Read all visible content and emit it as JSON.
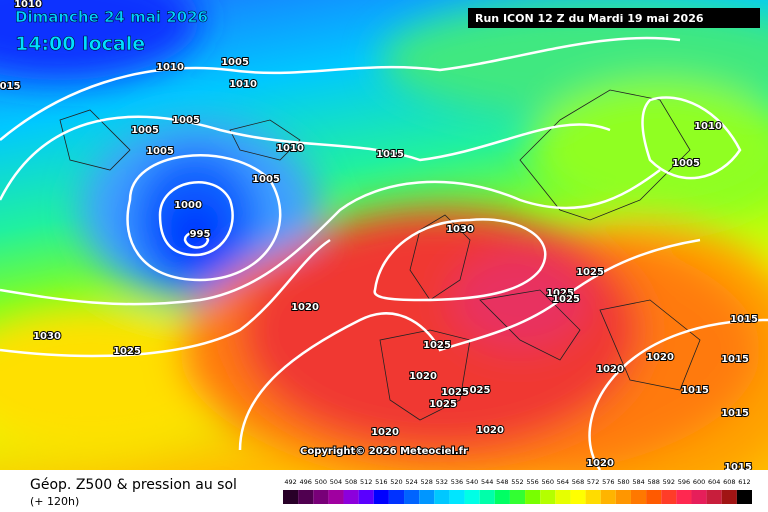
{
  "header": {
    "date": "Dimanche 24 mai 2026",
    "time": "14:00 locale",
    "run": "Run ICON 12 Z du Mardi 19 mai 2026"
  },
  "isobar_labels": [
    "1010",
    "015",
    "1010",
    "1005",
    "1010",
    "1005",
    "1005",
    "1005",
    "1010",
    "1015",
    "1005",
    "1000",
    "995",
    "1030",
    "1020",
    "1030",
    "1025",
    "1025",
    "1025",
    "1025",
    "1025",
    "1020",
    "1025",
    "025",
    "1025",
    "1020",
    "1020",
    "1010",
    "1005",
    "1015",
    "1020",
    "1020",
    "1015",
    "1015",
    "1015",
    "1015",
    "1020"
  ],
  "copyright": "Copyright© 2026 Meteociel.fr",
  "footer": {
    "title": "Géop. Z500 & pression au sol",
    "subtitle": "(+ 120h)"
  },
  "legend": {
    "values": [
      492,
      496,
      500,
      504,
      508,
      512,
      516,
      520,
      524,
      528,
      532,
      536,
      540,
      544,
      548,
      552,
      556,
      560,
      564,
      568,
      572,
      576,
      580,
      584,
      588,
      592,
      596,
      600,
      604,
      608,
      612
    ],
    "colors": [
      "#280028",
      "#500050",
      "#780078",
      "#a000a0",
      "#8c00dc",
      "#5a00ff",
      "#0000ff",
      "#0032ff",
      "#0064ff",
      "#0096ff",
      "#00c8ff",
      "#00e6ff",
      "#00ffe6",
      "#00ffaa",
      "#00ff64",
      "#32ff32",
      "#78ff00",
      "#b4ff00",
      "#e6ff00",
      "#ffff00",
      "#ffdc00",
      "#ffb400",
      "#ff9600",
      "#ff7800",
      "#ff5a00",
      "#ff3c28",
      "#ff2850",
      "#e61e5a",
      "#c81e3c",
      "#a01414",
      "#000000"
    ]
  }
}
